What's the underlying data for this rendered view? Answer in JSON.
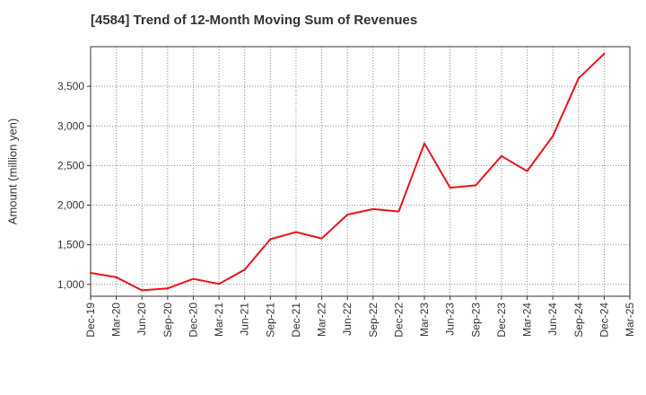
{
  "chart_data": {
    "type": "line",
    "title": "[4584]  Trend of 12-Month Moving Sum of Revenues",
    "xlabel": "",
    "ylabel": "Amount (million yen)",
    "categories": [
      "Dec-19",
      "Mar-20",
      "Jun-20",
      "Sep-20",
      "Dec-20",
      "Mar-21",
      "Jun-21",
      "Sep-21",
      "Dec-21",
      "Mar-22",
      "Jun-22",
      "Sep-22",
      "Dec-22",
      "Mar-23",
      "Jun-23",
      "Sep-23",
      "Dec-23",
      "Mar-24",
      "Jun-24",
      "Sep-24",
      "Dec-24",
      "Mar-25"
    ],
    "series": [
      {
        "values": [
          1145,
          1090,
          925,
          950,
          1070,
          1005,
          1185,
          1570,
          1660,
          1580,
          1880,
          1950,
          1920,
          2780,
          2220,
          2250,
          2620,
          2430,
          2870,
          3600,
          3910,
          null
        ],
        "color": "#e8141c"
      }
    ],
    "ylim": [
      850,
      4000
    ],
    "yticks": [
      1000,
      1500,
      2000,
      2500,
      3000,
      3500
    ],
    "ytick_labels": [
      "1,000",
      "1,500",
      "2,000",
      "2,500",
      "3,000",
      "3,500"
    ],
    "grid": true,
    "legend": "none"
  }
}
